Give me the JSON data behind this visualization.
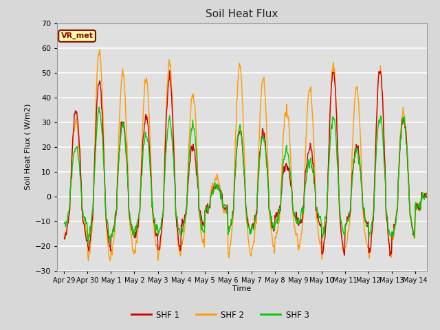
{
  "title": "Soil Heat Flux",
  "xlabel": "Time",
  "ylabel": "Soil Heat Flux ( W/m2)",
  "ylim": [
    -30,
    70
  ],
  "annotation": "VR_met",
  "series_colors": [
    "#cc0000",
    "#ff9900",
    "#00cc00"
  ],
  "series_labels": [
    "SHF 1",
    "SHF 2",
    "SHF 3"
  ],
  "fig_bg_color": "#d8d8d8",
  "plot_bg_color": "#e0e0e0",
  "grid_color": "#ffffff",
  "tick_positions": [
    0,
    1,
    2,
    3,
    4,
    5,
    6,
    7,
    8,
    9,
    10,
    11,
    12,
    13,
    14,
    15
  ],
  "tick_labels": [
    "Apr 29",
    "Apr 30",
    "May 1",
    "May 2",
    "May 3",
    "May 4",
    "May 5",
    "May 6",
    "May 7",
    "May 8",
    "May 9",
    "May 10",
    "May 11",
    "May 12",
    "May 13",
    "May 14"
  ]
}
